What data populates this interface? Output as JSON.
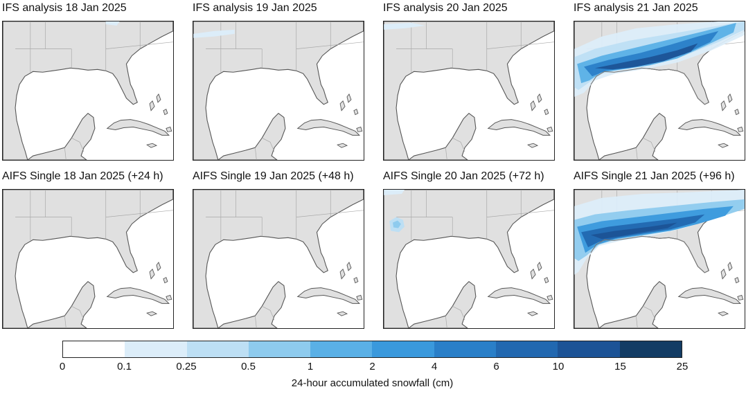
{
  "panels": [
    {
      "title": "IFS analysis 18 Jan 2025",
      "snow": "none"
    },
    {
      "title": "IFS analysis 19 Jan 2025",
      "snow": "none"
    },
    {
      "title": "IFS analysis 20 Jan 2025",
      "snow": "none"
    },
    {
      "title": "IFS analysis 21 Jan 2025",
      "snow": "heavy-gulf-coast-band"
    },
    {
      "title": "AIFS Single 18 Jan 2025 (+24 h)",
      "snow": "none"
    },
    {
      "title": "AIFS Single 19 Jan 2025 (+48 h)",
      "snow": "none"
    },
    {
      "title": "AIFS Single 20 Jan 2025 (+72 h)",
      "snow": "small-patch-texas"
    },
    {
      "title": "AIFS Single 21 Jan 2025 (+96 h)",
      "snow": "heavy-gulf-coast-band"
    }
  ],
  "colorbar": {
    "title": "24-hour accumulated snowfall (cm)",
    "ticks": [
      "0",
      "0.1",
      "0.25",
      "0.5",
      "1",
      "2",
      "4",
      "6",
      "10",
      "15",
      "25"
    ],
    "colors": [
      "#ffffff",
      "#dcedf9",
      "#bddff4",
      "#8ecbee",
      "#5ab0e6",
      "#3a99dc",
      "#2a7fc8",
      "#2268b0",
      "#1c5396",
      "#133c64"
    ]
  },
  "map_colors": {
    "land": "#e0e0e0",
    "ocean": "#ffffff",
    "coast": "#555555"
  }
}
